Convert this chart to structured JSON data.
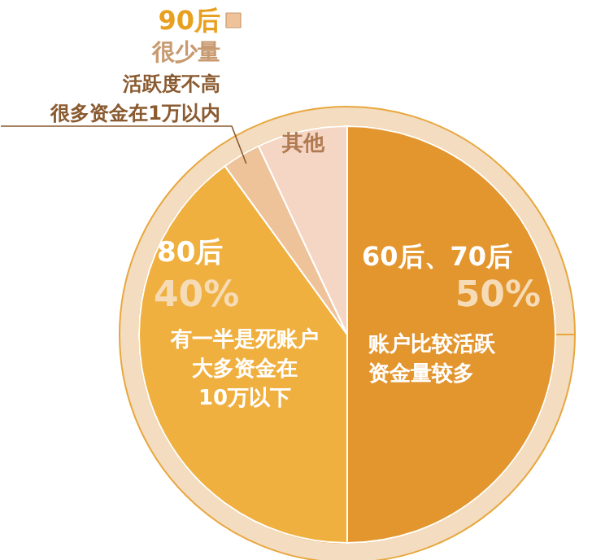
{
  "chart_data": {
    "type": "pie",
    "categories": [
      "60后、70后",
      "80后",
      "90后",
      "其他"
    ],
    "values": [
      50,
      40,
      3,
      7
    ],
    "colors": [
      "#e3952e",
      "#f0b040",
      "#eec39a",
      "#f5d6c4"
    ],
    "value_labels": [
      "50%",
      "40%",
      null,
      null
    ],
    "annotations": [
      "账户比较活跃",
      "资金量较多",
      "有一半是死账户",
      "大多资金在",
      "10万以下",
      "很少量",
      "活跃度不高",
      "很多资金在1万以内"
    ]
  }
}
